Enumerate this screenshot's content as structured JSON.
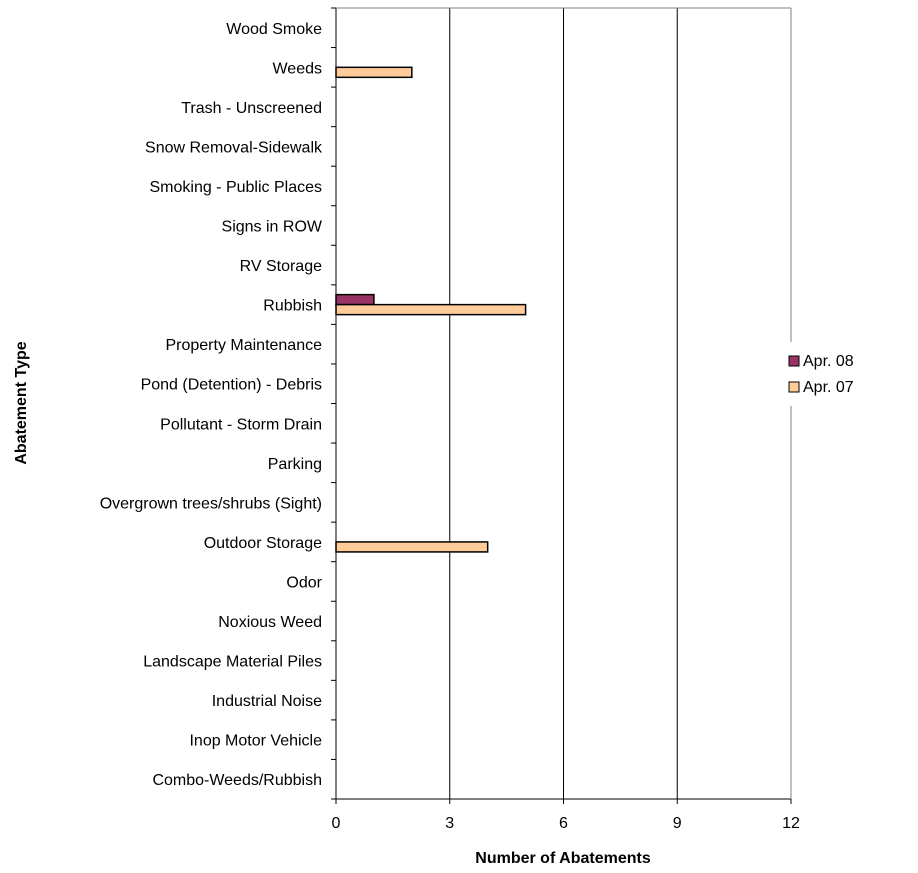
{
  "chart_data": {
    "type": "bar",
    "orientation": "horizontal",
    "categories": [
      "Wood Smoke",
      "Weeds",
      "Trash - Unscreened",
      "Snow Removal-Sidewalk",
      "Smoking - Public Places",
      "Signs in ROW",
      "RV Storage",
      "Rubbish",
      "Property Maintenance",
      "Pond (Detention) - Debris",
      "Pollutant - Storm Drain",
      "Parking",
      "Overgrown trees/shrubs (Sight)",
      "Outdoor Storage",
      "Odor",
      "Noxious Weed",
      "Landscape Material Piles",
      "Industrial Noise",
      "Inop Motor Vehicle",
      "Combo-Weeds/Rubbish"
    ],
    "series": [
      {
        "name": "Apr. 08",
        "color": "#993366",
        "values": [
          0,
          0,
          0,
          0,
          0,
          0,
          0,
          1,
          0,
          0,
          0,
          0,
          0,
          0,
          0,
          0,
          0,
          0,
          0,
          0
        ]
      },
      {
        "name": "Apr. 07",
        "color": "#FFCC99",
        "values": [
          0,
          2,
          0,
          0,
          0,
          0,
          0,
          5,
          0,
          0,
          0,
          0,
          0,
          4,
          0,
          0,
          0,
          0,
          0,
          0
        ]
      }
    ],
    "xlabel": "Number of Abatements",
    "ylabel": "Abatement Type",
    "xlim": [
      0,
      12
    ],
    "xticks": [
      "0",
      "3",
      "6",
      "9",
      "12"
    ],
    "xtick_values": [
      0,
      3,
      6,
      9,
      12
    ],
    "grid": "vertical major gridlines",
    "legend_position": "right"
  }
}
